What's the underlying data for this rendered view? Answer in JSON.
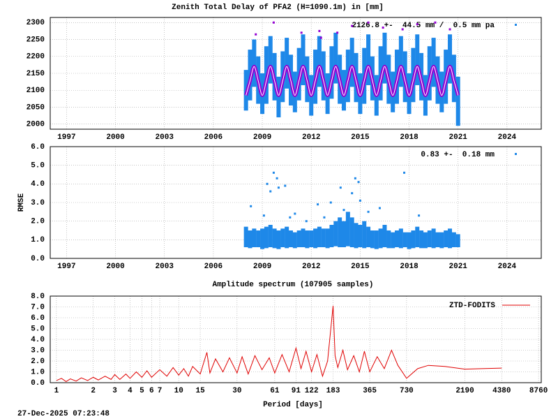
{
  "chart_data": [
    {
      "type": "scatter",
      "title": "Zenith Total Delay of PFA2 (H=1090.1m) in [mm]",
      "annotation": "2126.8 +-  44.5 mm /  0.5 mm pa",
      "x": [
        2008.0,
        2008.25,
        2008.5,
        2008.75,
        2009.0,
        2009.25,
        2009.5,
        2009.75,
        2010.0,
        2010.25,
        2010.5,
        2010.75,
        2011.0,
        2011.25,
        2011.5,
        2011.75,
        2012.0,
        2012.25,
        2012.5,
        2012.75,
        2013.0,
        2013.25,
        2013.5,
        2013.75,
        2014.0,
        2014.25,
        2014.5,
        2014.75,
        2015.0,
        2015.25,
        2015.5,
        2015.75,
        2016.0,
        2016.25,
        2016.5,
        2016.75,
        2017.0,
        2017.25,
        2017.5,
        2017.75,
        2018.0,
        2018.25,
        2018.5,
        2018.75,
        2019.0,
        2019.25,
        2019.5,
        2019.75,
        2020.0,
        2020.25,
        2020.5,
        2020.75,
        2021.0
      ],
      "series": [
        {
          "color": "#1e88e8",
          "low": [
            2040,
            2070,
            2110,
            2060,
            2030,
            2060,
            2120,
            2070,
            2020,
            2065,
            2105,
            2055,
            2035,
            2070,
            2115,
            2065,
            2025,
            2060,
            2110,
            2070,
            2030,
            2075,
            2120,
            2060,
            2040,
            2065,
            2110,
            2065,
            2030,
            2060,
            2115,
            2070,
            2025,
            2070,
            2120,
            2060,
            2035,
            2060,
            2110,
            2065,
            2030,
            2065,
            2115,
            2070,
            2025,
            2070,
            2110,
            2060,
            2035,
            2060,
            2120,
            2065,
            1995
          ],
          "high": [
            2160,
            2220,
            2250,
            2200,
            2150,
            2230,
            2260,
            2210,
            2140,
            2215,
            2255,
            2205,
            2155,
            2225,
            2265,
            2200,
            2145,
            2220,
            2260,
            2215,
            2150,
            2230,
            2270,
            2205,
            2160,
            2220,
            2255,
            2210,
            2150,
            2225,
            2265,
            2200,
            2145,
            2230,
            2270,
            2205,
            2155,
            2220,
            2260,
            2215,
            2150,
            2225,
            2265,
            2210,
            2145,
            2230,
            2255,
            2200,
            2155,
            2220,
            2265,
            2205,
            2140
          ]
        },
        {
          "color": "#9400d3",
          "values": [
            2085,
            2128,
            2170,
            2128,
            2085,
            2128,
            2170,
            2128,
            2085,
            2128,
            2170,
            2128,
            2085,
            2128,
            2170,
            2128,
            2085,
            2128,
            2170,
            2128,
            2085,
            2128,
            2170,
            2128,
            2085,
            2128,
            2170,
            2128,
            2085,
            2128,
            2170,
            2128,
            2085,
            2128,
            2170,
            2128,
            2085,
            2128,
            2170,
            2128,
            2085,
            2128,
            2170,
            2128,
            2085,
            2128,
            2170,
            2128,
            2085,
            2128,
            2170,
            2128,
            2085
          ]
        },
        {
          "color": "#9400d3",
          "x": [
            2008.6,
            2009.7,
            2011.4,
            2012.5,
            2012.6,
            2013.6,
            2014.5,
            2015.5,
            2016.4,
            2017.6,
            2018.5,
            2019.6,
            2020.5
          ],
          "values": [
            2265,
            2300,
            2270,
            2275,
            2255,
            2270,
            2290,
            2300,
            2285,
            2280,
            2295,
            2300,
            2280
          ]
        }
      ],
      "xlim": [
        1996,
        2026.1
      ],
      "xticks": [
        1997,
        2000,
        2003,
        2006,
        2009,
        2012,
        2015,
        2018,
        2021,
        2024
      ],
      "ylim": [
        1985,
        2315
      ],
      "yticks": [
        2000,
        2050,
        2100,
        2150,
        2200,
        2250,
        2300
      ],
      "grid": true
    },
    {
      "type": "scatter",
      "ylabel": "RMSE",
      "annotation": "0.83 +-  0.18 mm",
      "x": [
        2008.0,
        2008.25,
        2008.5,
        2008.75,
        2009.0,
        2009.25,
        2009.5,
        2009.75,
        2010.0,
        2010.25,
        2010.5,
        2010.75,
        2011.0,
        2011.25,
        2011.5,
        2011.75,
        2012.0,
        2012.25,
        2012.5,
        2012.75,
        2013.0,
        2013.25,
        2013.5,
        2013.75,
        2014.0,
        2014.25,
        2014.5,
        2014.75,
        2015.0,
        2015.25,
        2015.5,
        2015.75,
        2016.0,
        2016.25,
        2016.5,
        2016.75,
        2017.0,
        2017.25,
        2017.5,
        2017.75,
        2018.0,
        2018.25,
        2018.5,
        2018.75,
        2019.0,
        2019.25,
        2019.5,
        2019.75,
        2020.0,
        2020.25,
        2020.5,
        2020.75,
        2021.0
      ],
      "series": [
        {
          "color": "#1e88e8",
          "low": [
            0.6,
            0.55,
            0.6,
            0.6,
            0.5,
            0.55,
            0.6,
            0.55,
            0.5,
            0.6,
            0.55,
            0.6,
            0.55,
            0.6,
            0.6,
            0.55,
            0.6,
            0.55,
            0.6,
            0.6,
            0.55,
            0.6,
            0.65,
            0.6,
            0.6,
            0.65,
            0.6,
            0.55,
            0.6,
            0.55,
            0.6,
            0.55,
            0.5,
            0.55,
            0.6,
            0.55,
            0.55,
            0.6,
            0.55,
            0.6,
            0.5,
            0.55,
            0.6,
            0.55,
            0.55,
            0.6,
            0.55,
            0.6,
            0.55,
            0.6,
            0.55,
            0.6,
            0.6
          ],
          "high": [
            1.7,
            1.5,
            1.6,
            1.5,
            1.6,
            1.7,
            1.8,
            1.6,
            1.5,
            1.6,
            1.7,
            1.5,
            1.4,
            1.5,
            1.6,
            1.5,
            1.5,
            1.6,
            1.7,
            1.6,
            1.6,
            1.8,
            2.0,
            2.2,
            2.0,
            2.5,
            2.2,
            1.9,
            1.8,
            2.0,
            1.7,
            1.5,
            1.5,
            1.6,
            1.8,
            1.5,
            1.4,
            1.5,
            1.6,
            1.4,
            1.4,
            1.5,
            1.7,
            1.5,
            1.4,
            1.5,
            1.6,
            1.4,
            1.4,
            1.5,
            1.6,
            1.4,
            1.3
          ]
        },
        {
          "color": "#1e88e8",
          "x": [
            2008.3,
            2009.1,
            2009.3,
            2009.5,
            2009.7,
            2009.9,
            2010.0,
            2010.4,
            2010.7,
            2011.0,
            2011.7,
            2012.4,
            2012.8,
            2013.2,
            2013.8,
            2014.0,
            2014.5,
            2014.7,
            2014.9,
            2015.0,
            2015.5,
            2016.2,
            2017.7,
            2018.6
          ],
          "values": [
            2.8,
            2.3,
            4.0,
            3.6,
            4.6,
            4.3,
            3.8,
            3.9,
            2.2,
            2.4,
            2.0,
            2.9,
            2.2,
            3.0,
            3.8,
            2.6,
            3.5,
            4.3,
            4.1,
            3.1,
            2.5,
            2.7,
            4.6,
            2.3
          ]
        }
      ],
      "xlim": [
        1996,
        2026.1
      ],
      "xticks": [
        1997,
        2000,
        2003,
        2006,
        2009,
        2012,
        2015,
        2018,
        2021,
        2024
      ],
      "ylim": [
        0,
        6
      ],
      "yticks": [
        {
          "value": 0,
          "label": "0.0"
        },
        {
          "value": 1,
          "label": "1.0"
        },
        {
          "value": 2,
          "label": "2.0"
        },
        {
          "value": 3,
          "label": "3.0"
        },
        {
          "value": 4,
          "label": "4.0"
        },
        {
          "value": 5,
          "label": "5.0"
        },
        {
          "value": 6,
          "label": "6.0"
        }
      ],
      "grid": true
    },
    {
      "type": "line",
      "title": "Amplitude spectrum (107905 samples)",
      "xlabel": "Period [days]",
      "log_x": true,
      "legend": "top-right",
      "x": [
        1,
        1.1,
        1.2,
        1.3,
        1.45,
        1.6,
        1.8,
        2,
        2.2,
        2.5,
        2.8,
        3,
        3.3,
        3.7,
        4,
        4.5,
        5,
        5.5,
        6,
        7,
        8,
        9,
        10,
        11,
        12,
        13,
        15,
        17,
        18,
        20,
        23,
        26,
        30,
        33,
        37,
        42,
        48,
        55,
        61,
        70,
        80,
        91,
        100,
        110,
        122,
        135,
        150,
        165,
        183,
        190,
        200,
        220,
        240,
        270,
        300,
        330,
        365,
        420,
        480,
        550,
        620,
        730,
        900,
        1100,
        1500,
        2190,
        3000,
        4380
      ],
      "series": [
        {
          "name": "ZTD-FODITS",
          "color": "#e00000",
          "values": [
            0.2,
            0.4,
            0.1,
            0.35,
            0.15,
            0.45,
            0.2,
            0.5,
            0.25,
            0.6,
            0.3,
            0.75,
            0.3,
            0.8,
            0.4,
            1.0,
            0.5,
            1.1,
            0.5,
            1.2,
            0.6,
            1.4,
            0.7,
            1.3,
            0.6,
            1.5,
            0.8,
            2.8,
            0.9,
            2.2,
            1.0,
            2.3,
            0.9,
            2.4,
            0.8,
            2.5,
            1.2,
            2.3,
            0.9,
            2.6,
            1.0,
            3.2,
            1.3,
            2.9,
            1.0,
            2.6,
            0.6,
            2.0,
            7.1,
            2.5,
            1.4,
            3.0,
            1.2,
            2.5,
            1.0,
            2.9,
            1.0,
            2.4,
            1.3,
            3.0,
            1.6,
            0.4,
            1.3,
            1.6,
            1.5,
            1.25,
            1.3,
            1.35
          ]
        }
      ],
      "xlim": [
        0.89,
        9220
      ],
      "xticks": [
        1,
        2,
        3,
        4,
        5,
        6,
        7,
        10,
        15,
        30,
        61,
        91,
        122,
        183,
        365,
        730,
        2190,
        4380,
        8760
      ],
      "ylim": [
        0,
        8
      ],
      "yticks": [
        {
          "value": 0,
          "label": "0.0"
        },
        {
          "value": 1,
          "label": "1.0"
        },
        {
          "value": 2,
          "label": "2.0"
        },
        {
          "value": 3,
          "label": "3.0"
        },
        {
          "value": 4,
          "label": "4.0"
        },
        {
          "value": 5,
          "label": "5.0"
        },
        {
          "value": 6,
          "label": "6.0"
        },
        {
          "value": 7,
          "label": "7.0"
        },
        {
          "value": 8,
          "label": "8.0"
        }
      ],
      "grid": true
    }
  ],
  "footer": "27-Dec-2025 07:23:48"
}
